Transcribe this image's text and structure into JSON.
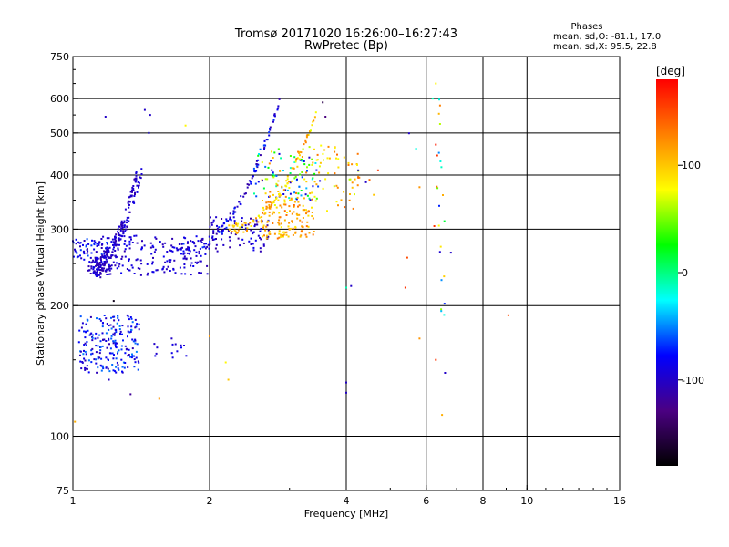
{
  "chart_data": {
    "type": "scatter",
    "title": "Tromsø 20171020 16:26:00–16:27:43",
    "subtitle": "RwPretec (Bp)",
    "stats": {
      "heading": "Phases",
      "line1": "mean, sd,O: -81.1, 17.0",
      "line2": "mean, sd,X:  95.5, 22.8"
    },
    "xlabel": "Frequency [MHz]",
    "ylabel": "Stationary phase Virtual Height [km]",
    "x_scale": "log",
    "y_scale": "log",
    "xlim": [
      1,
      16
    ],
    "ylim": [
      75,
      750
    ],
    "x_ticks": [
      1,
      2,
      4,
      6,
      8,
      10,
      16
    ],
    "x_tick_labels": [
      "1",
      "2",
      "4",
      "6",
      "8",
      "10",
      "16"
    ],
    "x_grid": [
      2,
      4,
      6,
      8,
      10
    ],
    "y_ticks": [
      75,
      100,
      200,
      300,
      400,
      500,
      600,
      750
    ],
    "y_tick_labels": [
      "75",
      "100",
      "200",
      "300",
      "400",
      "500",
      "600",
      "750"
    ],
    "y_grid": [
      100,
      200,
      300,
      400,
      500,
      600
    ],
    "colorbar": {
      "label": "[deg]",
      "range": [
        -180,
        180
      ],
      "ticks": [
        100,
        0,
        -100
      ],
      "tick_labels": [
        "100",
        "0",
        "-100"
      ],
      "colors": [
        "#000000",
        "#4b0082",
        "#0000ff",
        "#00ffff",
        "#00ff00",
        "#ffff00",
        "#ff8000",
        "#ff0000"
      ]
    },
    "point_groups": [
      {
        "name": "",
        "f": [
          1.0,
          1.2
        ],
        "h": [
          255,
          285
        ],
        "n": 60,
        "phase": [
          -110,
          -60
        ]
      },
      {
        "name": "",
        "f": [
          1.03,
          1.4
        ],
        "h": [
          140,
          190
        ],
        "n": 220,
        "phase": [
          -110,
          -50
        ]
      },
      {
        "name": "",
        "f": [
          1.5,
          1.8
        ],
        "h": [
          150,
          165
        ],
        "n": 12,
        "phase": [
          -100,
          -80
        ]
      },
      {
        "name": "",
        "f": [
          1.1,
          2.0
        ],
        "h": [
          235,
          290
        ],
        "n": 200,
        "phase": [
          -110,
          -80
        ]
      },
      {
        "name": "",
        "f": [
          2.0,
          2.7
        ],
        "h": [
          265,
          320
        ],
        "n": 80,
        "phase": [
          -120,
          -80
        ]
      },
      {
        "name": "",
        "f": [
          2.5,
          3.5
        ],
        "h": [
          350,
          460
        ],
        "n": 110,
        "phase": [
          -110,
          130
        ]
      },
      {
        "name": "",
        "f": [
          2.6,
          3.4
        ],
        "h": [
          285,
          360
        ],
        "n": 140,
        "phase": [
          80,
          140
        ]
      },
      {
        "name": "",
        "f": [
          3.3,
          4.3
        ],
        "h": [
          330,
          470
        ],
        "n": 60,
        "phase": [
          60,
          140
        ]
      },
      {
        "name": "",
        "f": [
          6.3,
          6.6
        ],
        "h": [
          180,
          600
        ],
        "n": 20,
        "phase": [
          -100,
          160
        ]
      }
    ],
    "curves": [
      {
        "name": "",
        "f": [
          1.08,
          1.38
        ],
        "h0": 245,
        "c": 155,
        "p": 2.3,
        "n": 140,
        "phase": [
          -115,
          -85
        ]
      },
      {
        "name": "",
        "f": [
          1.12,
          1.42
        ],
        "h0": 240,
        "c": 170,
        "p": 2.1,
        "n": 90,
        "phase": [
          -115,
          -85
        ]
      },
      {
        "name": "",
        "f": [
          1.7,
          2.85
        ],
        "h0": 270,
        "c": 320,
        "p": 2.4,
        "n": 110,
        "phase": [
          -115,
          -60
        ]
      },
      {
        "name": "",
        "f": [
          2.2,
          3.45
        ],
        "h0": 300,
        "c": 260,
        "p": 2.2,
        "n": 90,
        "phase": [
          70,
          130
        ]
      }
    ],
    "points": [
      [
        1.18,
        545,
        -100
      ],
      [
        1.44,
        565,
        -100
      ],
      [
        1.47,
        500,
        -90
      ],
      [
        1.77,
        520,
        80
      ],
      [
        1.48,
        550,
        -100
      ],
      [
        1.23,
        205,
        -170
      ],
      [
        1.34,
        125,
        -120
      ],
      [
        1.55,
        122,
        120
      ],
      [
        1.65,
        168,
        -100
      ],
      [
        1.73,
        162,
        -100
      ],
      [
        1.2,
        135,
        -100
      ],
      [
        1.01,
        108,
        110
      ],
      [
        2.0,
        170,
        120
      ],
      [
        2.17,
        148,
        80
      ],
      [
        2.2,
        135,
        100
      ],
      [
        2.85,
        598,
        -110
      ],
      [
        2.83,
        570,
        -100
      ],
      [
        3.55,
        588,
        -150
      ],
      [
        3.6,
        545,
        -130
      ],
      [
        4.42,
        385,
        -100
      ],
      [
        4.5,
        390,
        140
      ],
      [
        4.6,
        360,
        100
      ],
      [
        4.7,
        410,
        160
      ],
      [
        4.0,
        220,
        -10
      ],
      [
        4.0,
        133,
        -100
      ],
      [
        4.0,
        126,
        -100
      ],
      [
        4.1,
        222,
        -100
      ],
      [
        4.25,
        410,
        -100
      ],
      [
        5.5,
        499,
        -100
      ],
      [
        5.7,
        460,
        -20
      ],
      [
        5.8,
        375,
        120
      ],
      [
        5.8,
        168,
        120
      ],
      [
        5.45,
        258,
        150
      ],
      [
        5.4,
        220,
        160
      ],
      [
        6.25,
        305,
        160
      ],
      [
        6.3,
        470,
        170
      ],
      [
        6.3,
        150,
        160
      ],
      [
        6.4,
        450,
        -50
      ],
      [
        6.45,
        430,
        -20
      ],
      [
        6.5,
        112,
        110
      ],
      [
        6.6,
        140,
        -100
      ],
      [
        6.8,
        265,
        -100
      ],
      [
        9.1,
        190,
        150
      ],
      [
        6.2,
        600,
        -10
      ],
      [
        6.3,
        650,
        80
      ]
    ]
  }
}
